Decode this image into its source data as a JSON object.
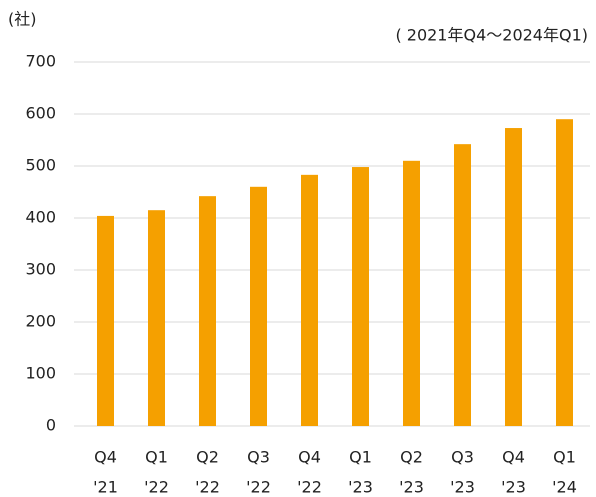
{
  "chart_data": {
    "type": "bar",
    "unit_label": "(社)",
    "subtitle": "( 2021年Q4～2024年Q1)",
    "categories": [
      [
        "Q4",
        "'21"
      ],
      [
        "Q1",
        "'22"
      ],
      [
        "Q2",
        "'22"
      ],
      [
        "Q3",
        "'22"
      ],
      [
        "Q4",
        "'22"
      ],
      [
        "Q1",
        "'23"
      ],
      [
        "Q2",
        "'23"
      ],
      [
        "Q3",
        "'23"
      ],
      [
        "Q4",
        "'23"
      ],
      [
        "Q1",
        "'24"
      ]
    ],
    "values": [
      404,
      415,
      442,
      460,
      483,
      498,
      510,
      542,
      573,
      590
    ],
    "color": "#f5a000",
    "ylim": [
      0,
      700
    ],
    "yticks": [
      0,
      100,
      200,
      300,
      400,
      500,
      600,
      700
    ],
    "grid": true
  }
}
